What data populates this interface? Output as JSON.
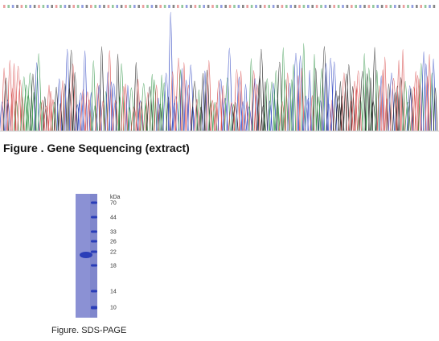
{
  "sequencing": {
    "caption": "Figure . Gene Sequencing (extract)",
    "trace_colors": [
      "#d85050",
      "#3c9a50",
      "#3a4fc4",
      "#222222"
    ]
  },
  "sds_page": {
    "caption": "Figure. SDS-PAGE",
    "unit_label": "kDa",
    "markers": [
      "70",
      "44",
      "33",
      "26",
      "22",
      "18",
      "14",
      "10"
    ],
    "gel_color": "#8b91d4",
    "band_color": "#2a3db8"
  }
}
